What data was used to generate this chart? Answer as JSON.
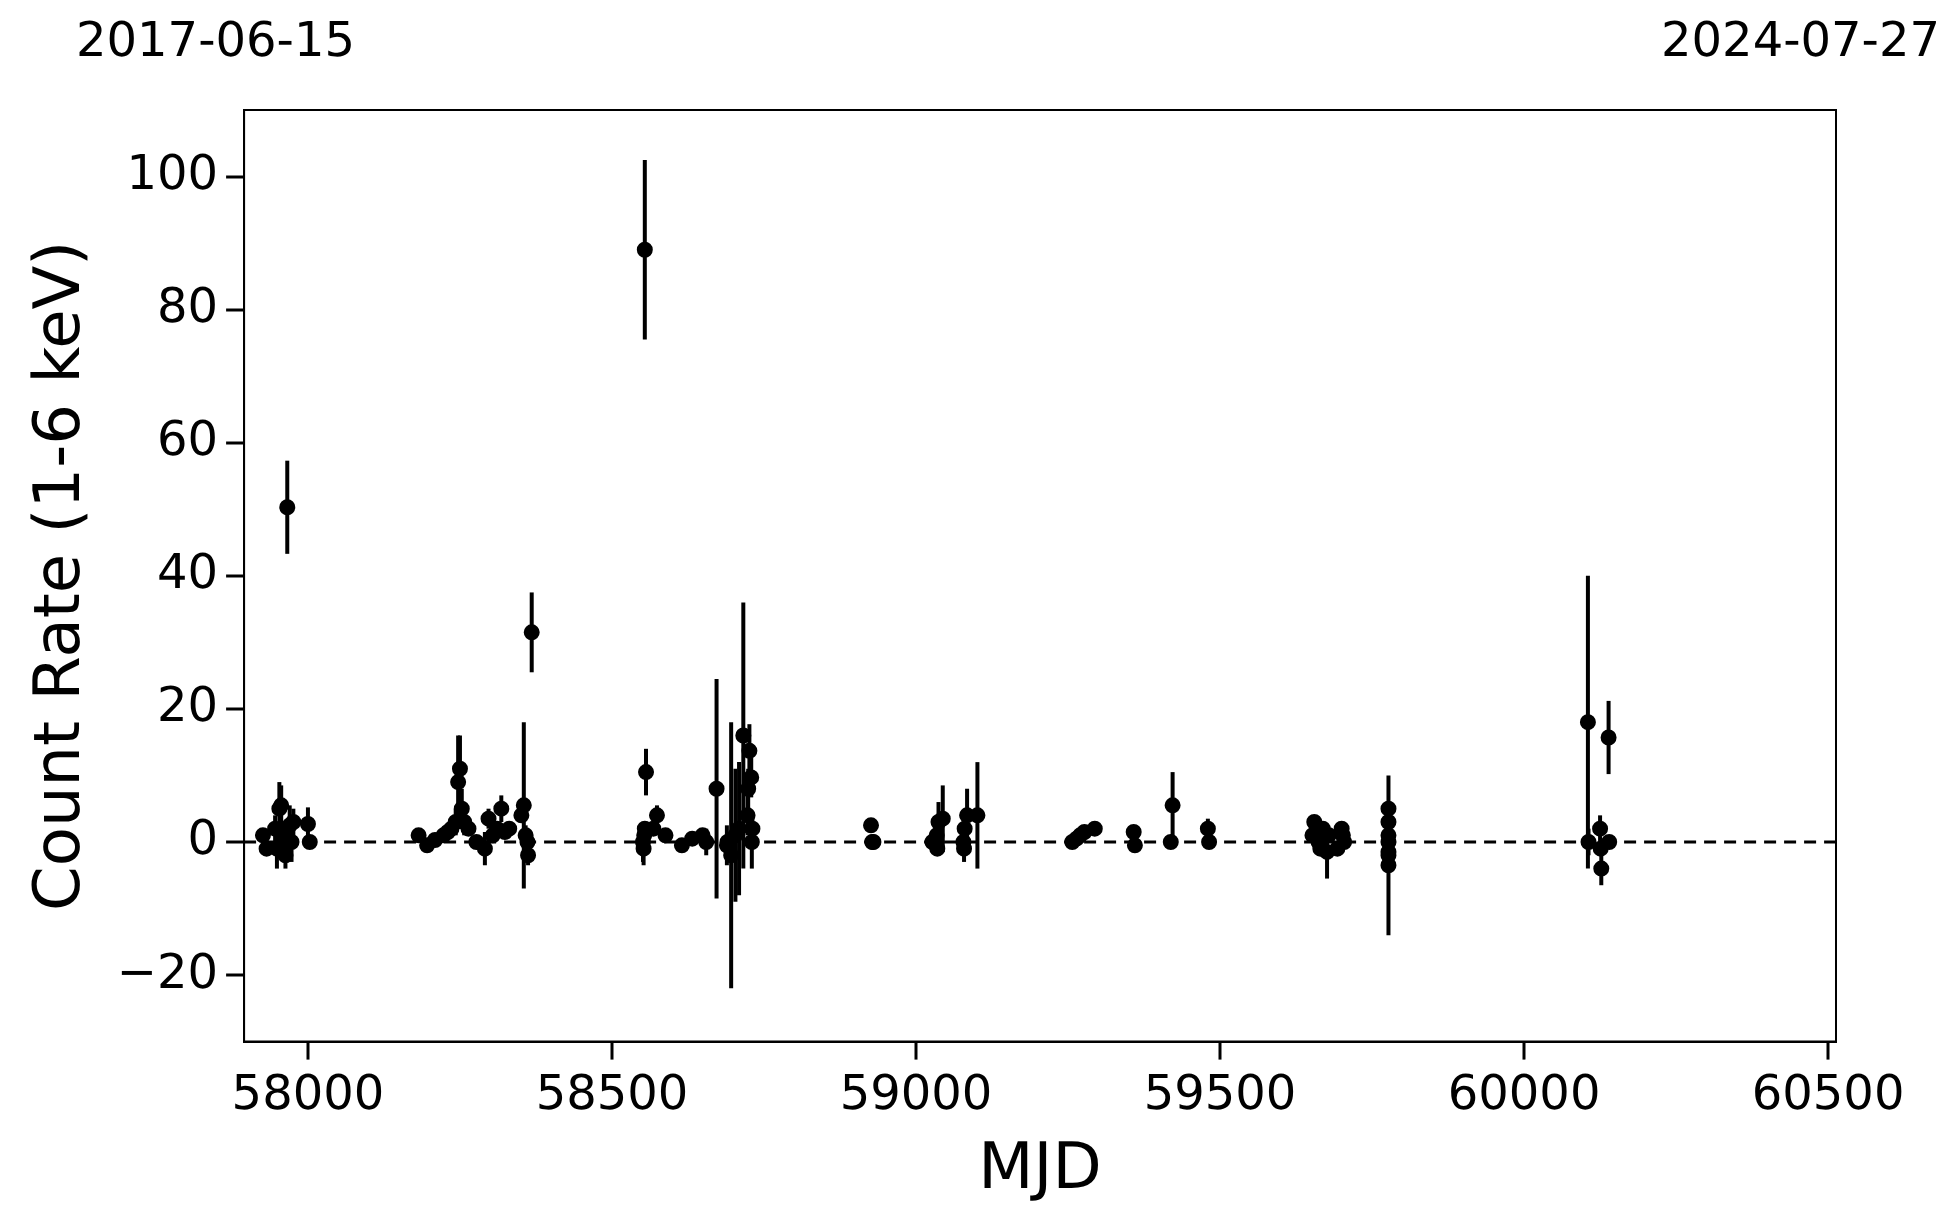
{
  "chart_data": {
    "type": "scatter",
    "xlabel": "MJD",
    "ylabel": "Count Rate (1-6 keV)",
    "annotations": [
      "2017-06-15",
      "2024-07-27"
    ],
    "xlim": [
      57895,
      60513
    ],
    "xticks": [
      58000,
      58500,
      59000,
      59500,
      60000,
      60500
    ],
    "ylim": [
      -30,
      110
    ],
    "yticks": [
      -20,
      0,
      20,
      40,
      60,
      80,
      100
    ],
    "grid": false,
    "legend": false,
    "marker": "circle",
    "ref_lines": [
      {
        "axis": "y",
        "value": 0,
        "color": "#000000",
        "line_style": "dashed"
      }
    ],
    "series": [
      {
        "color": "#000000",
        "x": [
          57926,
          57932,
          57946,
          57949,
          57953,
          57956,
          57959,
          57963,
          57966,
          57970,
          57973,
          57976,
          58000,
          58003,
          58182,
          58196,
          58209,
          58223,
          58230,
          58236,
          58243,
          58247,
          58250,
          58253,
          58257,
          58264,
          58277,
          58291,
          58297,
          58304,
          58311,
          58318,
          58324,
          58331,
          58351,
          58355,
          58358,
          58361,
          58362,
          58368,
          58551,
          58552,
          58553,
          58554,
          58556,
          58554,
          58568,
          58574,
          58588,
          58615,
          58632,
          58649,
          58655,
          58672,
          58689,
          58690,
          58696,
          58703,
          58709,
          58716,
          58723,
          58724,
          58726,
          58729,
          58730,
          58731,
          58926,
          58928,
          58930,
          59027,
          59034,
          59035,
          59037,
          59044,
          59078,
          59079,
          59080,
          59084,
          59101,
          59257,
          59264,
          59270,
          59277,
          59294,
          59358,
          59360,
          59419,
          59422,
          59480,
          59482,
          59652,
          59655,
          59662,
          59665,
          59669,
          59676,
          59679,
          59693,
          59700,
          59702,
          59704,
          59777,
          59777,
          59777,
          59777,
          59777,
          59777,
          59777,
          60105,
          60106,
          60125,
          60126,
          60127,
          60139,
          60140
        ],
        "values": [
          1,
          -1,
          2,
          -1,
          5,
          5.5,
          1,
          -2,
          50.3,
          2.5,
          0,
          3,
          2.7,
          0,
          1,
          -0.5,
          0.3,
          1,
          1.5,
          2,
          3,
          9,
          11,
          5,
          3,
          2,
          0,
          -1,
          3.5,
          1,
          2,
          5,
          1.5,
          2,
          4,
          5.5,
          1,
          0,
          -2,
          31.5,
          0,
          -1,
          1,
          2,
          10.5,
          89,
          2,
          4,
          1,
          -0.5,
          0.5,
          1,
          0,
          8,
          -0.5,
          0,
          -2,
          1,
          2,
          16,
          4,
          8,
          13.7,
          9.7,
          0,
          2,
          2.5,
          0,
          0,
          0,
          1,
          -1,
          3,
          3.5,
          0,
          -1,
          2,
          4,
          4,
          0,
          0.5,
          1,
          1.5,
          2,
          1.5,
          -0.5,
          0,
          5.5,
          2,
          0,
          1,
          3,
          0,
          -1,
          2,
          -1.5,
          1,
          -1,
          2,
          1,
          0,
          5,
          3,
          1,
          0,
          -1.5,
          -3.5,
          -2,
          18,
          0,
          2,
          -1,
          -4,
          15.7,
          0
        ],
        "errors": [
          1,
          1,
          2,
          3,
          4,
          3,
          2,
          2,
          7,
          3,
          3,
          2,
          2.5,
          1,
          1,
          1,
          1,
          1,
          1,
          1,
          2,
          7,
          5,
          3,
          2,
          1,
          1,
          2.5,
          1.5,
          1,
          1,
          2,
          1,
          1,
          1,
          12.5,
          1.5,
          1.5,
          1.5,
          6,
          3,
          2.5,
          1,
          1,
          3.5,
          13.5,
          1,
          1.5,
          1,
          1,
          1,
          1,
          2,
          16.5,
          3,
          1,
          20,
          10,
          10,
          20,
          3,
          3,
          4,
          3,
          4,
          2,
          1,
          1,
          1,
          1,
          1,
          1,
          3,
          5,
          1,
          2,
          3,
          4,
          8,
          1,
          1,
          1,
          1,
          1,
          1,
          1,
          1,
          5,
          1.5,
          1,
          1,
          1,
          1,
          1,
          1,
          4,
          1,
          1,
          1,
          1.5,
          1,
          1,
          1,
          1,
          1,
          1,
          1,
          12,
          22,
          2,
          2,
          1,
          2.5,
          5.5,
          1
        ]
      }
    ]
  }
}
